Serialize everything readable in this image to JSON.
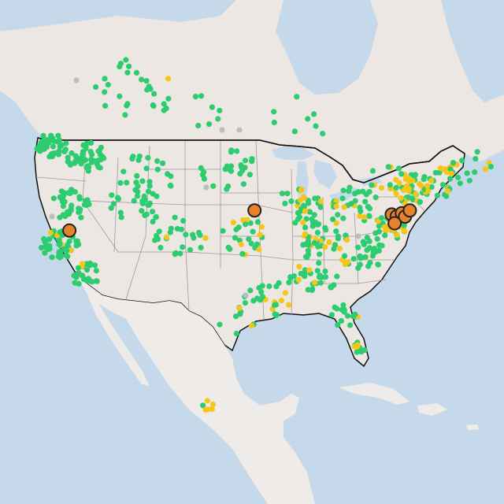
{
  "map": {
    "basemap": "light-gray",
    "colors": {
      "water": "#c6d9ea",
      "land": "#ece7e3",
      "land_other": "#efebe8",
      "state_border": "#9a9a9a",
      "country_border": "#111111",
      "frame": "#ffffff"
    },
    "legend": "none"
  },
  "sites": {
    "categories": [
      {
        "key": "good",
        "color": "#2ecc71"
      },
      {
        "key": "moderate",
        "color": "#f5c518"
      },
      {
        "key": "no-data",
        "color": "#bdbdbd"
      },
      {
        "key": "unhealthy",
        "color": "#e8822a",
        "outline": "#222222"
      }
    ],
    "large_markers": [
      {
        "category": "unhealthy",
        "lon": -121.49,
        "lat": 38.58
      },
      {
        "category": "unhealthy",
        "lon": -95.94,
        "lat": 41.26
      },
      {
        "category": "unhealthy",
        "lon": -77.0,
        "lat": 40.27
      },
      {
        "category": "unhealthy",
        "lon": -76.3,
        "lat": 40.04
      },
      {
        "category": "unhealthy",
        "lon": -75.6,
        "lat": 40.35
      },
      {
        "category": "unhealthy",
        "lon": -75.16,
        "lat": 39.95
      },
      {
        "category": "unhealthy",
        "lon": -74.5,
        "lat": 40.6
      },
      {
        "category": "unhealthy",
        "lon": -76.6,
        "lat": 39.29
      }
    ]
  }
}
